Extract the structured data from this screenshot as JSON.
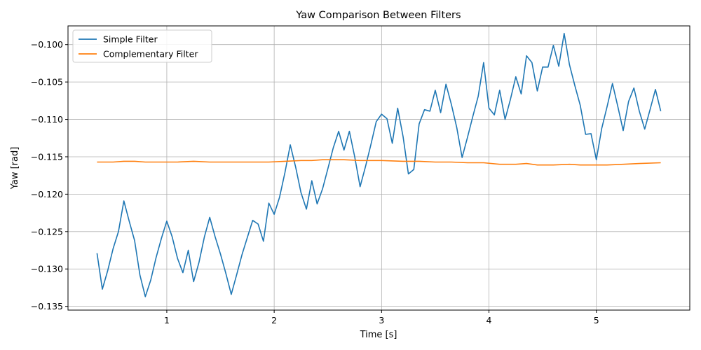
{
  "chart_data": {
    "type": "line",
    "title": "Yaw Comparison Between Filters",
    "xlabel": "Time [s]",
    "ylabel": "Yaw [rad]",
    "xlim": [
      0.08,
      5.87
    ],
    "ylim": [
      -0.1355,
      -0.0975
    ],
    "xticks": [
      1,
      2,
      3,
      4,
      5
    ],
    "xtick_labels": [
      "1",
      "2",
      "3",
      "4",
      "5"
    ],
    "yticks": [
      -0.135,
      -0.13,
      -0.125,
      -0.12,
      -0.115,
      -0.11,
      -0.105,
      -0.1
    ],
    "ytick_labels": [
      "−0.135",
      "−0.130",
      "−0.125",
      "−0.120",
      "−0.115",
      "−0.110",
      "−0.105",
      "−0.100"
    ],
    "grid": true,
    "legend_position": "top-left",
    "colors": {
      "simple": "#1f77b4",
      "complementary": "#ff7f0e",
      "grid": "#b0b0b0"
    },
    "series": [
      {
        "name": "Simple Filter",
        "color": "#1f77b4",
        "x": [
          0.35,
          0.4,
          0.45,
          0.5,
          0.55,
          0.6,
          0.65,
          0.7,
          0.75,
          0.8,
          0.85,
          0.9,
          0.95,
          1.0,
          1.05,
          1.1,
          1.15,
          1.2,
          1.25,
          1.3,
          1.35,
          1.4,
          1.45,
          1.5,
          1.55,
          1.6,
          1.65,
          1.7,
          1.75,
          1.8,
          1.85,
          1.9,
          1.95,
          2.0,
          2.05,
          2.1,
          2.15,
          2.2,
          2.25,
          2.3,
          2.35,
          2.4,
          2.45,
          2.5,
          2.55,
          2.6,
          2.65,
          2.7,
          2.75,
          2.8,
          2.85,
          2.9,
          2.95,
          3.0,
          3.05,
          3.1,
          3.15,
          3.2,
          3.25,
          3.3,
          3.35,
          3.4,
          3.45,
          3.5,
          3.55,
          3.6,
          3.65,
          3.7,
          3.75,
          3.8,
          3.85,
          3.9,
          3.95,
          4.0,
          4.05,
          4.1,
          4.15,
          4.2,
          4.25,
          4.3,
          4.35,
          4.4,
          4.45,
          4.5,
          4.55,
          4.6,
          4.65,
          4.7,
          4.75,
          4.8,
          4.85,
          4.9,
          4.95,
          5.0,
          5.05,
          5.1,
          5.15,
          5.2,
          5.25,
          5.3,
          5.35,
          5.4,
          5.45,
          5.5,
          5.55,
          5.6
        ],
        "y": [
          -0.1279,
          -0.1327,
          -0.1302,
          -0.1273,
          -0.125,
          -0.1209,
          -0.1236,
          -0.1262,
          -0.1308,
          -0.1337,
          -0.1315,
          -0.1285,
          -0.1259,
          -0.1236,
          -0.1257,
          -0.1286,
          -0.1305,
          -0.1275,
          -0.1317,
          -0.1291,
          -0.1257,
          -0.1231,
          -0.1257,
          -0.128,
          -0.1306,
          -0.1334,
          -0.1308,
          -0.1281,
          -0.1258,
          -0.1235,
          -0.124,
          -0.1263,
          -0.1212,
          -0.1227,
          -0.1204,
          -0.1171,
          -0.1134,
          -0.1164,
          -0.1198,
          -0.122,
          -0.1182,
          -0.1213,
          -0.1193,
          -0.1166,
          -0.1138,
          -0.1116,
          -0.1141,
          -0.1116,
          -0.115,
          -0.119,
          -0.1163,
          -0.1134,
          -0.1103,
          -0.1093,
          -0.1099,
          -0.1132,
          -0.1085,
          -0.1123,
          -0.1173,
          -0.1167,
          -0.1106,
          -0.1087,
          -0.1089,
          -0.1061,
          -0.1091,
          -0.1053,
          -0.108,
          -0.1111,
          -0.1151,
          -0.1124,
          -0.1096,
          -0.1069,
          -0.1024,
          -0.1085,
          -0.1094,
          -0.1061,
          -0.11,
          -0.1073,
          -0.1043,
          -0.1066,
          -0.1015,
          -0.1024,
          -0.1062,
          -0.103,
          -0.103,
          -0.1001,
          -0.1029,
          -0.0985,
          -0.1027,
          -0.1055,
          -0.1081,
          -0.112,
          -0.1119,
          -0.1154,
          -0.1112,
          -0.1083,
          -0.1052,
          -0.1083,
          -0.1115,
          -0.1076,
          -0.1058,
          -0.1089,
          -0.1113,
          -0.1087,
          -0.106,
          -0.1089
        ]
      },
      {
        "name": "Complementary Filter",
        "color": "#ff7f0e",
        "x": [
          0.35,
          0.5,
          0.6,
          0.7,
          0.8,
          0.95,
          1.1,
          1.25,
          1.4,
          1.55,
          1.75,
          1.95,
          2.1,
          2.25,
          2.35,
          2.45,
          2.55,
          2.65,
          2.8,
          3.0,
          3.2,
          3.35,
          3.5,
          3.65,
          3.8,
          3.95,
          4.1,
          4.25,
          4.35,
          4.45,
          4.6,
          4.75,
          4.85,
          4.95,
          5.1,
          5.25,
          5.4,
          5.6
        ],
        "y": [
          -0.1157,
          -0.1157,
          -0.1156,
          -0.1156,
          -0.1157,
          -0.1157,
          -0.1157,
          -0.1156,
          -0.1157,
          -0.1157,
          -0.1157,
          -0.1157,
          -0.1156,
          -0.1155,
          -0.1155,
          -0.1154,
          -0.1154,
          -0.1154,
          -0.1155,
          -0.1155,
          -0.1156,
          -0.1156,
          -0.1157,
          -0.1157,
          -0.1158,
          -0.1158,
          -0.116,
          -0.116,
          -0.1159,
          -0.1161,
          -0.1161,
          -0.116,
          -0.1161,
          -0.1161,
          -0.1161,
          -0.116,
          -0.1159,
          -0.1158
        ]
      }
    ]
  }
}
